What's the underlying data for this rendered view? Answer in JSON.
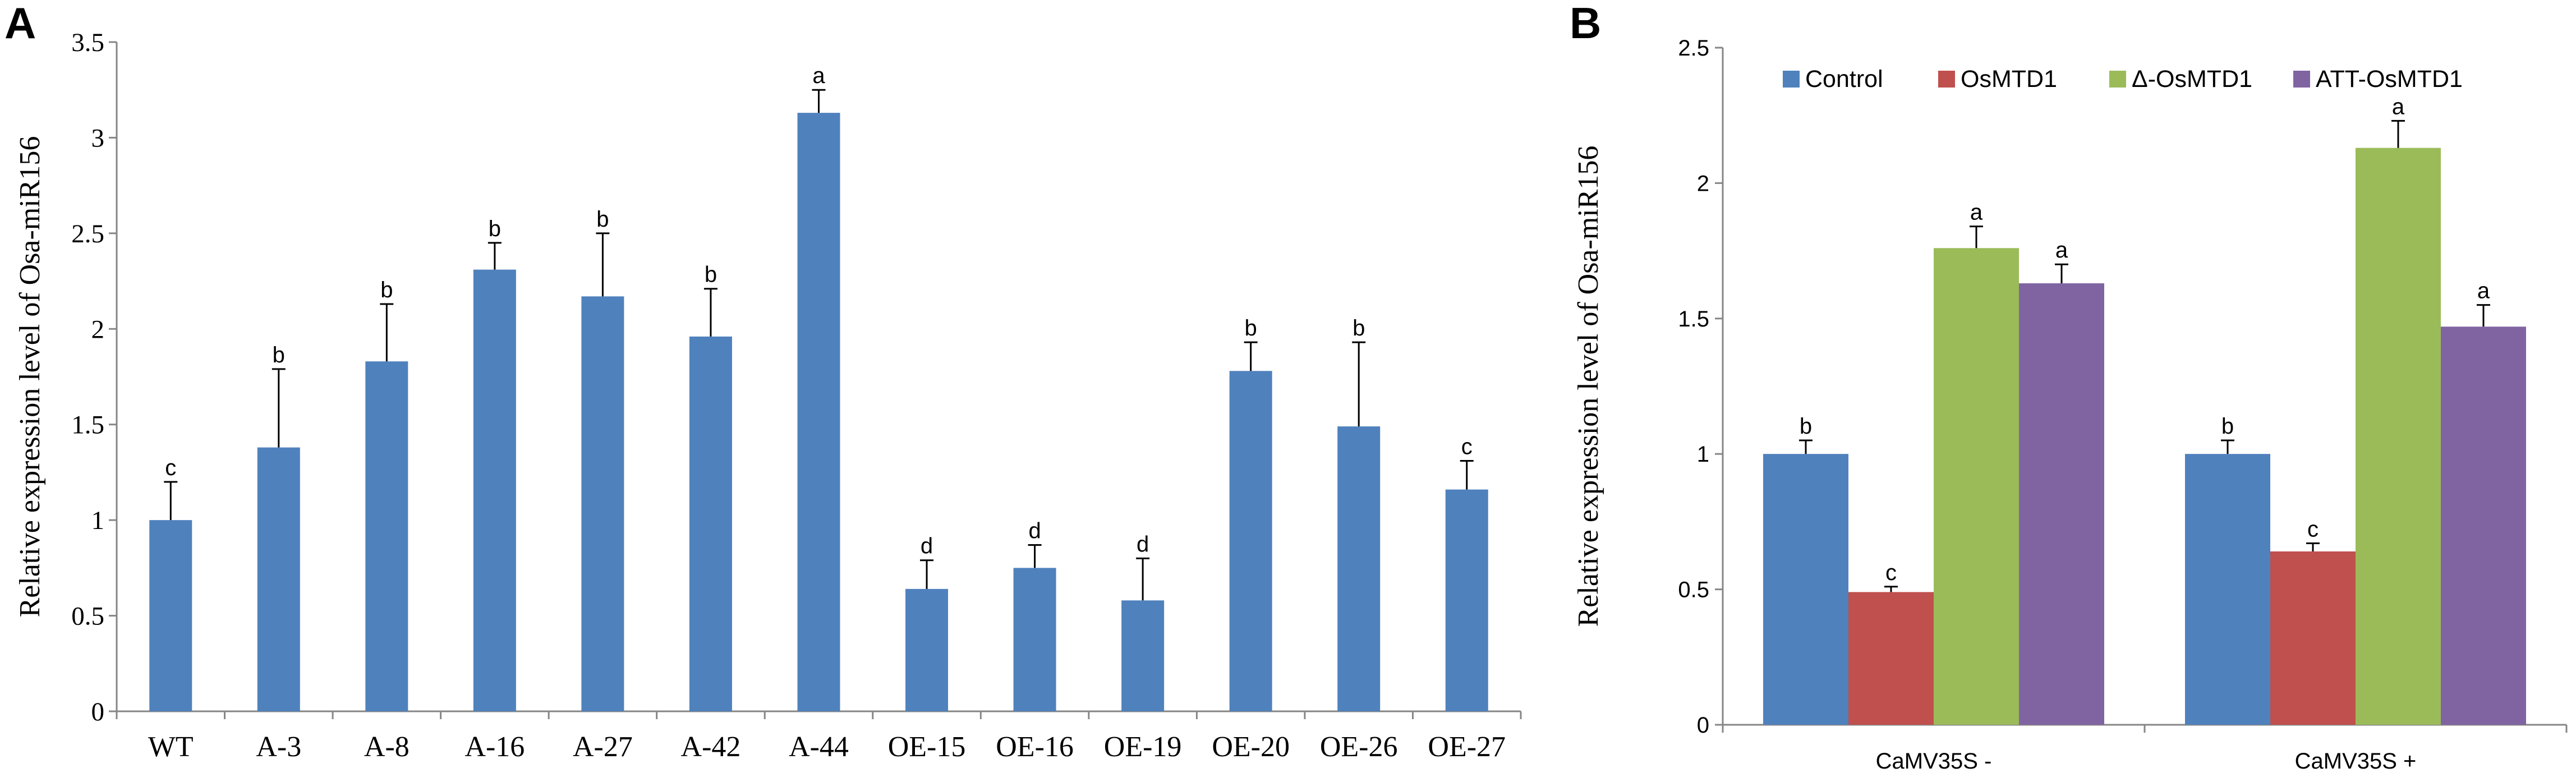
{
  "panels": {
    "a": {
      "letter": "A"
    },
    "b": {
      "letter": "B"
    }
  },
  "chart_data": [
    {
      "type": "bar",
      "panel": "A",
      "title": "",
      "xlabel": "",
      "ylabel": "Relative expression level of Osa-miR156",
      "ylim": [
        0,
        3.5
      ],
      "yticks": [
        0,
        0.5,
        1,
        1.5,
        2,
        2.5,
        3,
        3.5
      ],
      "ytick_labels": [
        "0",
        "0.5",
        "1",
        "1.5",
        "2",
        "2.5",
        "3",
        "3.5"
      ],
      "grid": false,
      "color": "#4f81bd",
      "categories": [
        "WT",
        "A-3",
        "A-8",
        "A-16",
        "A-27",
        "A-42",
        "A-44",
        "OE-15",
        "OE-16",
        "OE-19",
        "OE-20",
        "OE-26",
        "OE-27"
      ],
      "values": [
        1.0,
        1.38,
        1.83,
        2.31,
        2.17,
        1.96,
        3.13,
        0.64,
        0.75,
        0.58,
        1.78,
        1.49,
        1.16
      ],
      "errors": [
        0.2,
        0.41,
        0.3,
        0.14,
        0.33,
        0.25,
        0.12,
        0.15,
        0.12,
        0.22,
        0.15,
        0.44,
        0.15
      ],
      "significance": [
        "c",
        "b",
        "b",
        "b",
        "b",
        "b",
        "a",
        "d",
        "d",
        "d",
        "b",
        "b",
        "c"
      ]
    },
    {
      "type": "bar",
      "panel": "B",
      "title": "",
      "xlabel": "",
      "ylabel": "Relative expression level of Osa-miR156",
      "ylim": [
        0,
        2.5
      ],
      "yticks": [
        0,
        0.5,
        1,
        1.5,
        2,
        2.5
      ],
      "ytick_labels": [
        "0",
        "0.5",
        "1",
        "1.5",
        "2",
        "2.5"
      ],
      "grid": false,
      "legend_position": "top",
      "categories": [
        "CaMV35S -",
        "CaMV35S +"
      ],
      "series": [
        {
          "name": "Control",
          "color": "#4f81bd",
          "values": [
            1.0,
            1.0
          ],
          "errors": [
            0.05,
            0.05
          ],
          "significance": [
            "b",
            "b"
          ]
        },
        {
          "name": "OsMTD1",
          "color": "#c0504d",
          "values": [
            0.49,
            0.64
          ],
          "errors": [
            0.02,
            0.03
          ],
          "significance": [
            "c",
            "c"
          ]
        },
        {
          "name": "Δ-OsMTD1",
          "color": "#9bbb59",
          "values": [
            1.76,
            2.13
          ],
          "errors": [
            0.08,
            0.1
          ],
          "significance": [
            "a",
            "a"
          ]
        },
        {
          "name": "ATT-OsMTD1",
          "color": "#8064a2",
          "values": [
            1.63,
            1.47
          ],
          "errors": [
            0.07,
            0.08
          ],
          "significance": [
            "a",
            "a"
          ]
        }
      ]
    }
  ]
}
